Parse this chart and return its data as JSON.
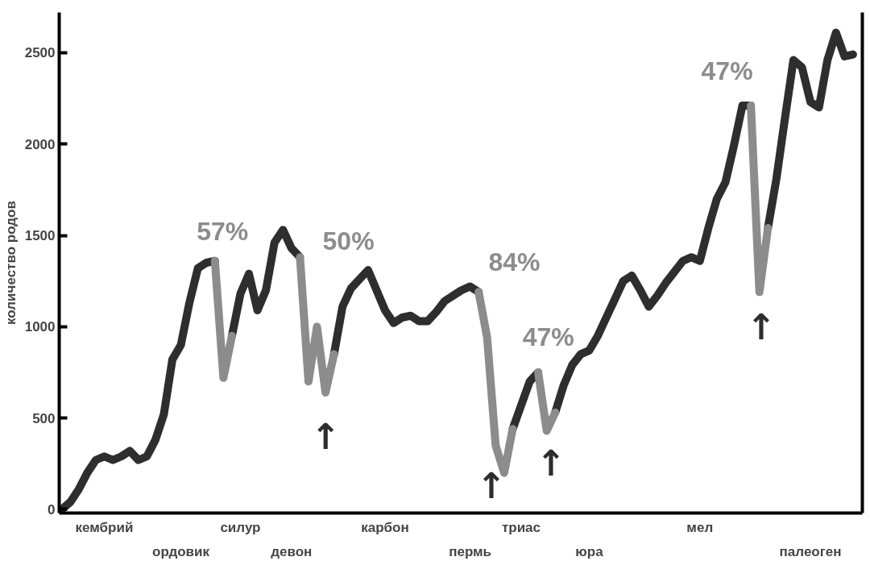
{
  "chart_data": {
    "type": "line",
    "ylabel": "количество родов",
    "ylim": [
      -20,
      2720
    ],
    "yticks": [
      0,
      500,
      1000,
      1500,
      2000,
      2500
    ],
    "grid": false,
    "marker": "none",
    "line_style": "solid",
    "categories": [
      null,
      null,
      null,
      null,
      null,
      "кембрий",
      null,
      null,
      null,
      null,
      null,
      null,
      null,
      null,
      "ордовик",
      null,
      null,
      null,
      null,
      null,
      null,
      "силур",
      null,
      null,
      null,
      null,
      null,
      "девон",
      null,
      null,
      null,
      null,
      null,
      null,
      null,
      null,
      null,
      null,
      "карбон",
      null,
      null,
      null,
      null,
      null,
      null,
      null,
      null,
      null,
      "пермь",
      null,
      null,
      null,
      null,
      null,
      "триас",
      null,
      null,
      null,
      null,
      null,
      null,
      null,
      "юра",
      null,
      null,
      null,
      null,
      null,
      null,
      null,
      null,
      null,
      null,
      null,
      null,
      "мел",
      null,
      null,
      null,
      null,
      null,
      null,
      null,
      null,
      null,
      null,
      null,
      null,
      "палеоген",
      null,
      null,
      null,
      null,
      null
    ],
    "series": [
      {
        "color": "#2e2e2e",
        "values": [
          0,
          40,
          110,
          200,
          270,
          290,
          270,
          290,
          320,
          270,
          290,
          380,
          520,
          820,
          900,
          1130,
          1320,
          1350,
          1360,
          null,
          950,
          1180,
          1290,
          1090,
          1200,
          1460,
          1530,
          1430,
          1380,
          null,
          null,
          null,
          850,
          1110,
          1210,
          1260,
          1310,
          1200,
          1090,
          1020,
          1050,
          1060,
          1030,
          1030,
          1080,
          1140,
          1170,
          1200,
          1220,
          1190,
          null,
          null,
          null,
          440,
          570,
          700,
          750,
          null,
          530,
          680,
          790,
          850,
          870,
          950,
          1050,
          1150,
          1250,
          1280,
          1200,
          1110,
          1170,
          1240,
          1300,
          1360,
          1380,
          1360,
          1540,
          1700,
          1790,
          1990,
          2210,
          2210,
          null,
          1540,
          1810,
          2140,
          2460,
          2420,
          2230,
          2200,
          2460,
          2610,
          2480,
          2490
        ]
      },
      {
        "color": "#8c8c8c",
        "values": [
          null,
          null,
          null,
          null,
          null,
          null,
          null,
          null,
          null,
          null,
          null,
          null,
          null,
          null,
          null,
          null,
          null,
          null,
          1360,
          720,
          950,
          null,
          null,
          null,
          null,
          null,
          null,
          null,
          1380,
          700,
          1000,
          640,
          850,
          null,
          null,
          null,
          null,
          null,
          null,
          null,
          null,
          null,
          null,
          null,
          null,
          null,
          null,
          null,
          null,
          1190,
          940,
          350,
          200,
          440,
          null,
          null,
          750,
          430,
          530,
          null,
          null,
          null,
          null,
          null,
          null,
          null,
          null,
          null,
          null,
          null,
          null,
          null,
          null,
          null,
          null,
          null,
          null,
          null,
          null,
          null,
          null,
          2210,
          1190,
          1540,
          null,
          null,
          null,
          null,
          null,
          null,
          null,
          null,
          null,
          null
        ]
      }
    ],
    "annotations": [
      "57%",
      "50%",
      "84%",
      "47%",
      "47%",
      "↑",
      "↑",
      "↑",
      "↑"
    ]
  }
}
